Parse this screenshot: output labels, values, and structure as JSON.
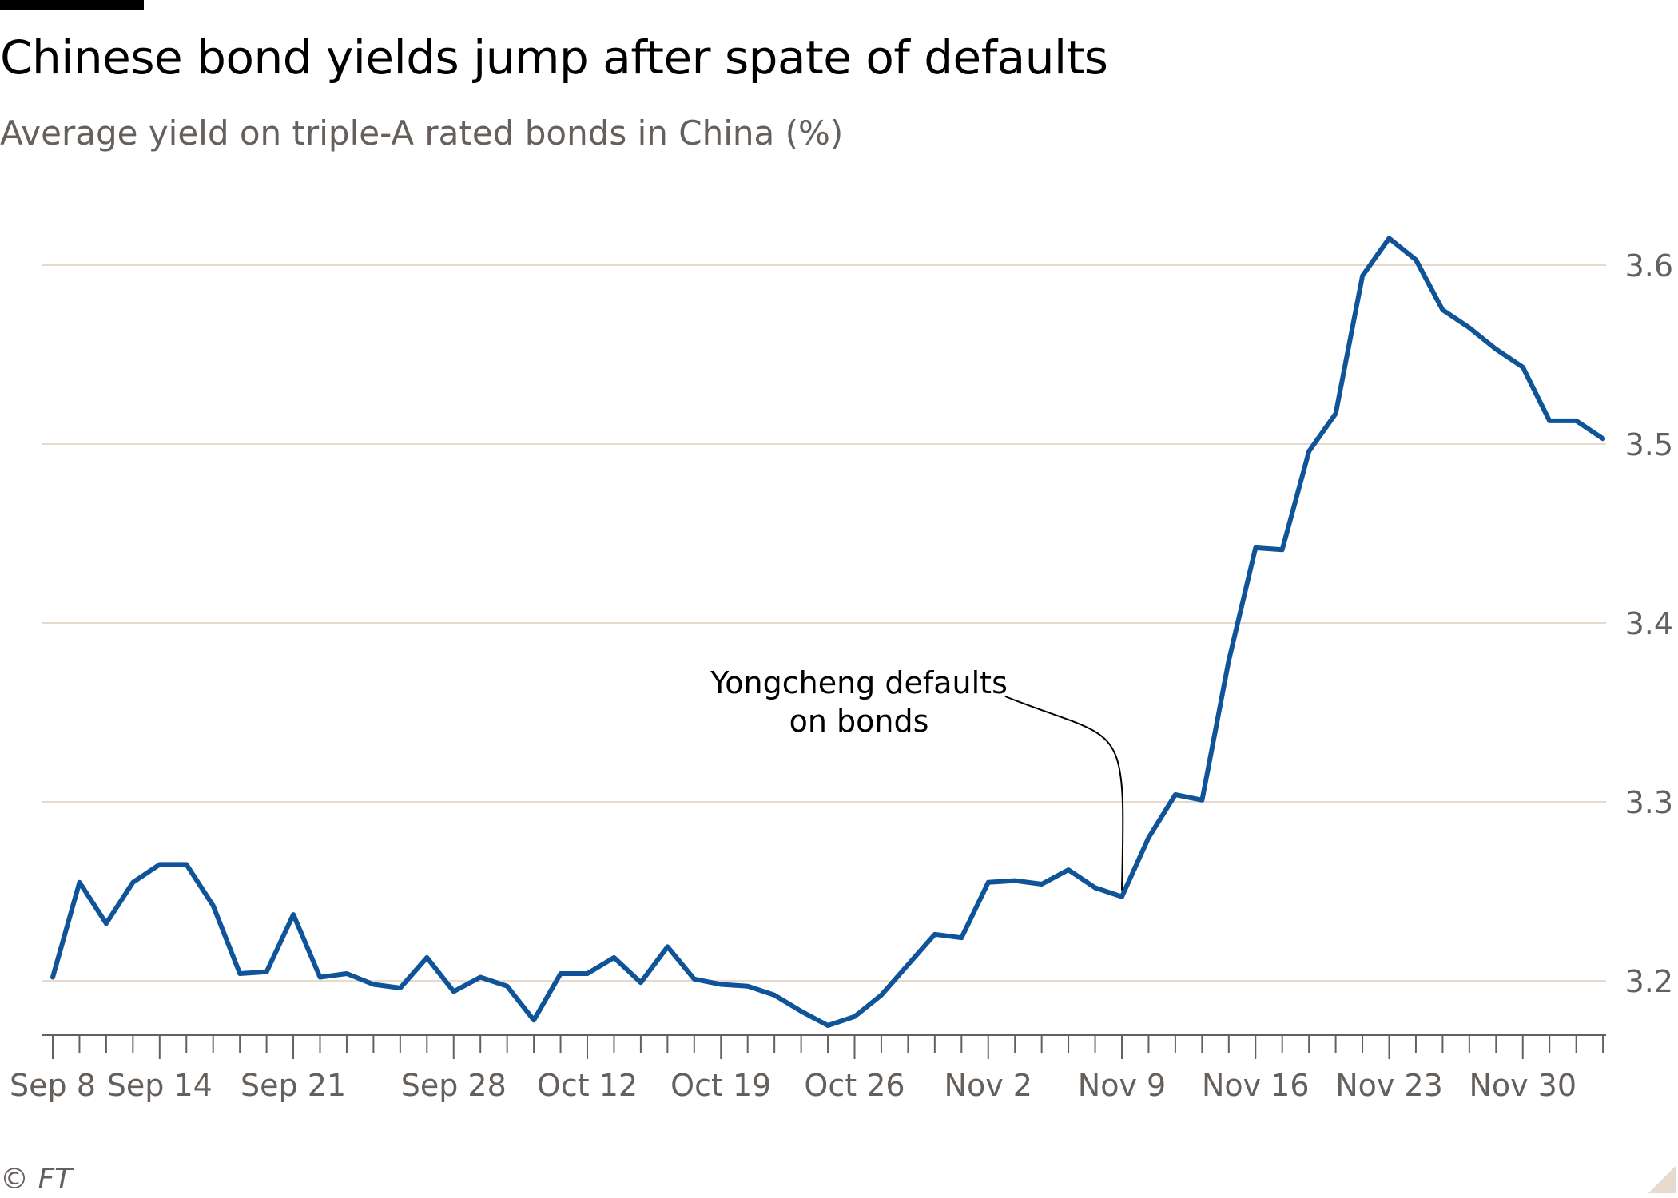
{
  "header": {
    "title": "Chinese bond yields jump after spate of defaults",
    "subtitle": "Average yield on triple-A rated bonds in China (%)"
  },
  "footer": {
    "source": "© FT"
  },
  "colors": {
    "line": "#0f5499",
    "grid": "#e6d9ce",
    "axis_text": "#66605c",
    "text": "#000000"
  },
  "chart_data": {
    "type": "line",
    "title": "Chinese bond yields jump after spate of defaults",
    "subtitle": "Average yield on triple-A rated bonds in China (%)",
    "xlabel": "",
    "ylabel": "",
    "ylim": [
      3.17,
      3.63
    ],
    "yticks": [
      3.2,
      3.3,
      3.4,
      3.5,
      3.6
    ],
    "ytick_labels": [
      "3.2",
      "3.3",
      "3.4",
      "3.5",
      "3.6"
    ],
    "y_axis_side": "right",
    "grid": true,
    "n_points": 59,
    "x_tick_labels": [
      {
        "index": 0,
        "label": "Sep 8"
      },
      {
        "index": 4,
        "label": "Sep 14"
      },
      {
        "index": 9,
        "label": "Sep 21"
      },
      {
        "index": 15,
        "label": "Sep 28"
      },
      {
        "index": 20,
        "label": "Oct 12"
      },
      {
        "index": 25,
        "label": "Oct 19"
      },
      {
        "index": 30,
        "label": "Oct 26"
      },
      {
        "index": 35,
        "label": "Nov 2"
      },
      {
        "index": 40,
        "label": "Nov 9"
      },
      {
        "index": 45,
        "label": "Nov 16"
      },
      {
        "index": 50,
        "label": "Nov 23"
      },
      {
        "index": 55,
        "label": "Nov 30"
      }
    ],
    "series": [
      {
        "name": "Average yield on triple-A rated bonds",
        "values": [
          3.202,
          3.255,
          3.232,
          3.255,
          3.265,
          3.265,
          3.242,
          3.204,
          3.205,
          3.237,
          3.202,
          3.204,
          3.198,
          3.196,
          3.213,
          3.194,
          3.202,
          3.197,
          3.178,
          3.204,
          3.204,
          3.213,
          3.199,
          3.219,
          3.201,
          3.198,
          3.197,
          3.192,
          3.183,
          3.175,
          3.18,
          3.192,
          3.209,
          3.226,
          3.224,
          3.255,
          3.256,
          3.254,
          3.262,
          3.252,
          3.247,
          3.28,
          3.304,
          3.301,
          3.379,
          3.442,
          3.441,
          3.496,
          3.517,
          3.594,
          3.615,
          3.603,
          3.575,
          3.565,
          3.553,
          3.543,
          3.513,
          3.513,
          3.503
        ]
      }
    ],
    "annotations": [
      {
        "text_lines": [
          "Yongcheng defaults",
          "on bonds"
        ],
        "point_index": 40
      }
    ]
  }
}
